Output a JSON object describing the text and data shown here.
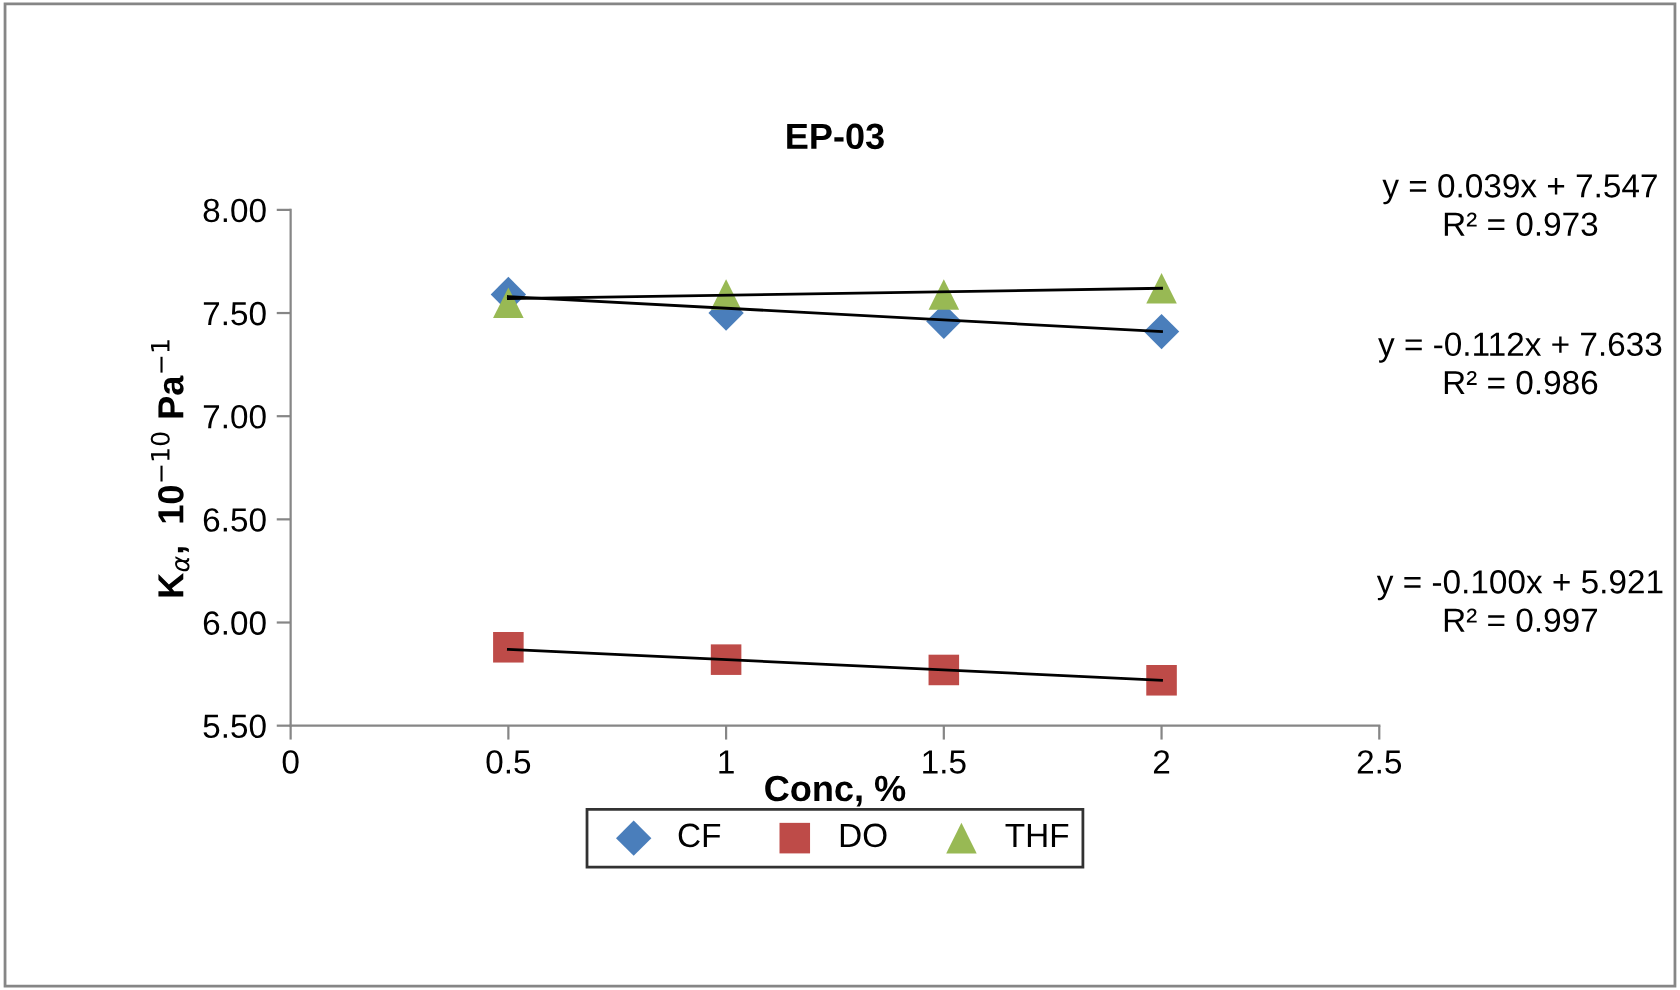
{
  "chart_data": {
    "type": "scatter",
    "title": "EP-03",
    "xlabel": "Conc, %",
    "ylabel": "K$_{α}$,  10$^{−10}$ Pa$^{−1}$",
    "xlim": [
      0,
      2.5
    ],
    "xticks": [
      0,
      0.5,
      1,
      1.5,
      2,
      2.5
    ],
    "ylim": [
      5.5,
      8.0
    ],
    "yticks": [
      {
        "value": 5.5,
        "label": "5.50"
      },
      {
        "value": 6.0,
        "label": "6.00"
      },
      {
        "value": 6.5,
        "label": "6.50"
      },
      {
        "value": 7.0,
        "label": "7.00"
      },
      {
        "value": 7.5,
        "label": "7.50"
      },
      {
        "value": 8.0,
        "label": "8.00"
      }
    ],
    "grid": false,
    "legend": "bottom",
    "series": [
      {
        "name": "CF",
        "marker": "diamond",
        "color": "#4a7ebb",
        "x": [
          0.5,
          1,
          1.5,
          2
        ],
        "values": [
          7.59,
          7.5,
          7.46,
          7.41
        ]
      },
      {
        "name": "DO",
        "marker": "square",
        "color": "#be4b48",
        "x": [
          0.5,
          1,
          1.5,
          2
        ],
        "values": [
          5.88,
          5.82,
          5.77,
          5.72
        ]
      },
      {
        "name": "THF",
        "marker": "triangle",
        "color": "#98b954",
        "x": [
          0.5,
          1,
          1.5,
          2
        ],
        "values": [
          7.55,
          7.59,
          7.59,
          7.62
        ]
      },
      {
        "type": "line",
        "marker": "none",
        "line_style": "solid",
        "color": "#000000",
        "x": [
          0.5,
          2
        ],
        "values": [
          7.57,
          7.62
        ]
      },
      {
        "type": "line",
        "marker": "none",
        "line_style": "solid",
        "color": "#000000",
        "x": [
          0.5,
          2
        ],
        "values": [
          7.58,
          7.41
        ]
      },
      {
        "type": "line",
        "marker": "none",
        "line_style": "solid",
        "color": "#000000",
        "x": [
          0.5,
          2
        ],
        "values": [
          5.87,
          5.72
        ]
      }
    ],
    "annotations": [
      "y = 0.039x + 7.547\nR² = 0.973",
      "y = -0.112x + 7.633\nR² = 0.986",
      "y = -0.100x + 5.921\nR² = 0.997"
    ]
  }
}
